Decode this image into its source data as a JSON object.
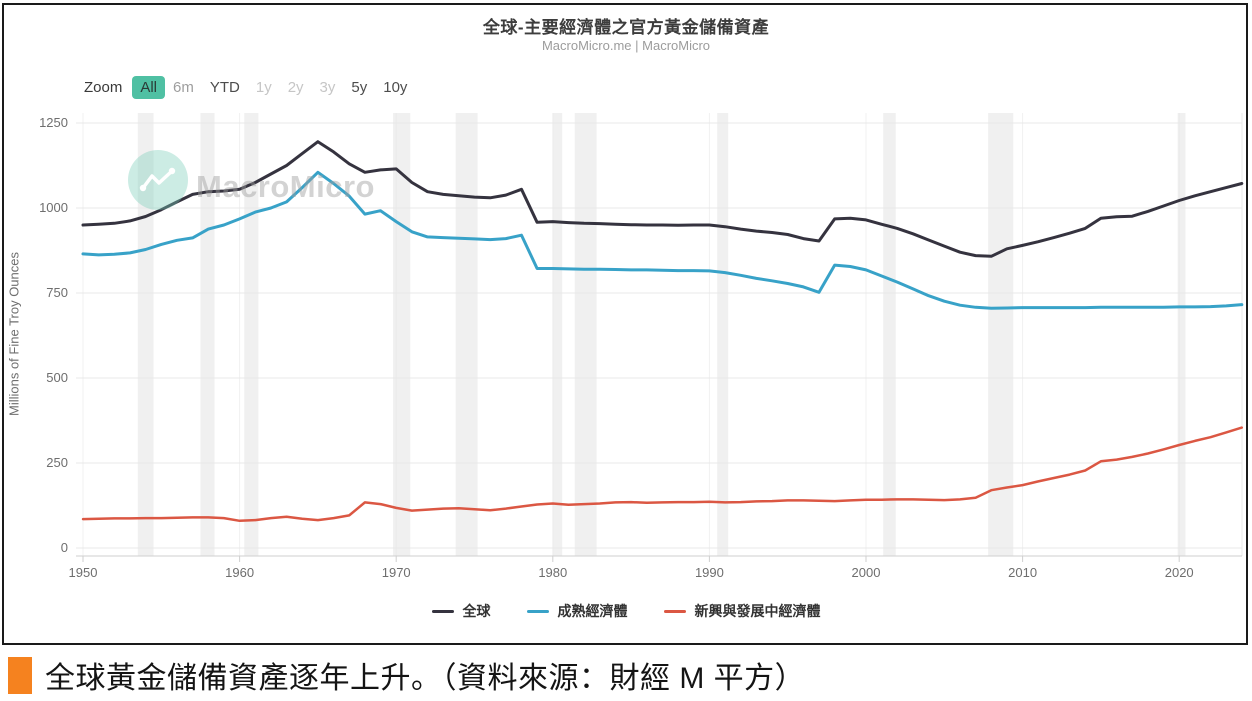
{
  "toolbar": {
    "zoom_label": "Zoom",
    "buttons": [
      {
        "label": "All",
        "state": "selected"
      },
      {
        "label": "6m",
        "state": "muted"
      },
      {
        "label": "YTD",
        "state": "normal"
      },
      {
        "label": "1y",
        "state": "disabled"
      },
      {
        "label": "2y",
        "state": "disabled"
      },
      {
        "label": "3y",
        "state": "disabled"
      },
      {
        "label": "5y",
        "state": "normal"
      },
      {
        "label": "10y",
        "state": "normal"
      }
    ]
  },
  "watermark": {
    "text": "MacroMicro",
    "logo": "line-chart-squiggle-icon"
  },
  "caption": {
    "text": "全球黃金儲備資產逐年上升。（資料來源：財經 M 平方）"
  },
  "colors": {
    "accent_teal": "#4fc0a3",
    "caption_marker_orange": "#f5821f",
    "gridline": "#e8e8e8",
    "recession_band": "#e3e3e3",
    "frame_border": "#1a1a1a"
  },
  "chart_data": {
    "type": "line",
    "title": "全球-主要經濟體之官方黃金儲備資產",
    "subtitle": "MacroMicro.me | MacroMicro",
    "ylabel": "Millions of Fine Troy Ounces",
    "xlabel": "",
    "ylim": [
      0,
      1250
    ],
    "yticks": [
      0,
      250,
      500,
      750,
      1000,
      1250
    ],
    "xticks": [
      1950,
      1960,
      1970,
      1980,
      1990,
      2000,
      2010,
      2020
    ],
    "x_start": 1950,
    "x_step": 1,
    "x_end": 2024,
    "grid": true,
    "legend_position": "bottom",
    "recession_bands": [
      [
        1953.5,
        1954.5
      ],
      [
        1957.5,
        1958.4
      ],
      [
        1960.3,
        1961.2
      ],
      [
        1969.8,
        1970.9
      ],
      [
        1973.8,
        1975.2
      ],
      [
        1980.0,
        1980.6
      ],
      [
        1981.4,
        1982.8
      ],
      [
        1990.5,
        1991.2
      ],
      [
        2001.1,
        2001.9
      ],
      [
        2007.8,
        2009.4
      ],
      [
        2019.9,
        2020.4
      ]
    ],
    "series": [
      {
        "name": "全球",
        "color": "#35333f",
        "width": 3,
        "values": [
          950,
          952,
          955,
          962,
          975,
          995,
          1018,
          1040,
          1048,
          1050,
          1055,
          1075,
          1100,
          1125,
          1160,
          1195,
          1165,
          1130,
          1105,
          1112,
          1115,
          1075,
          1048,
          1040,
          1036,
          1032,
          1030,
          1038,
          1055,
          958,
          960,
          957,
          955,
          954,
          952,
          951,
          950,
          950,
          949,
          950,
          950,
          945,
          938,
          932,
          928,
          922,
          910,
          903,
          968,
          970,
          965,
          952,
          940,
          924,
          906,
          888,
          870,
          860,
          858,
          880,
          890,
          901,
          913,
          926,
          940,
          970,
          974,
          976,
          990,
          1006,
          1022,
          1036,
          1048,
          1060,
          1072
        ]
      },
      {
        "name": "成熟經濟體",
        "color": "#38a2c8",
        "width": 3,
        "values": [
          865,
          862,
          864,
          868,
          878,
          893,
          905,
          912,
          938,
          950,
          968,
          988,
          1000,
          1018,
          1060,
          1105,
          1072,
          1035,
          982,
          992,
          960,
          930,
          915,
          913,
          911,
          909,
          907,
          910,
          920,
          822,
          822,
          821,
          820,
          820,
          819,
          818,
          818,
          817,
          816,
          816,
          815,
          810,
          802,
          793,
          786,
          778,
          768,
          752,
          832,
          828,
          818,
          800,
          782,
          762,
          742,
          726,
          714,
          708,
          705,
          706,
          707,
          707,
          707,
          707,
          707,
          708,
          708,
          708,
          708,
          708,
          709,
          709,
          710,
          712,
          716
        ]
      },
      {
        "name": "新興與發展中經濟體",
        "color": "#db5743",
        "width": 2.5,
        "values": [
          85,
          86,
          87,
          87,
          88,
          88,
          89,
          90,
          90,
          88,
          80,
          82,
          88,
          92,
          86,
          82,
          88,
          96,
          134,
          129,
          118,
          110,
          113,
          116,
          117,
          114,
          111,
          116,
          122,
          128,
          131,
          127,
          129,
          131,
          134,
          135,
          133,
          134,
          135,
          135,
          136,
          134,
          135,
          137,
          138,
          140,
          140,
          139,
          138,
          140,
          142,
          142,
          143,
          143,
          142,
          141,
          143,
          148,
          170,
          178,
          185,
          196,
          206,
          216,
          228,
          255,
          260,
          268,
          278,
          290,
          303,
          315,
          326,
          340,
          354
        ]
      }
    ]
  }
}
